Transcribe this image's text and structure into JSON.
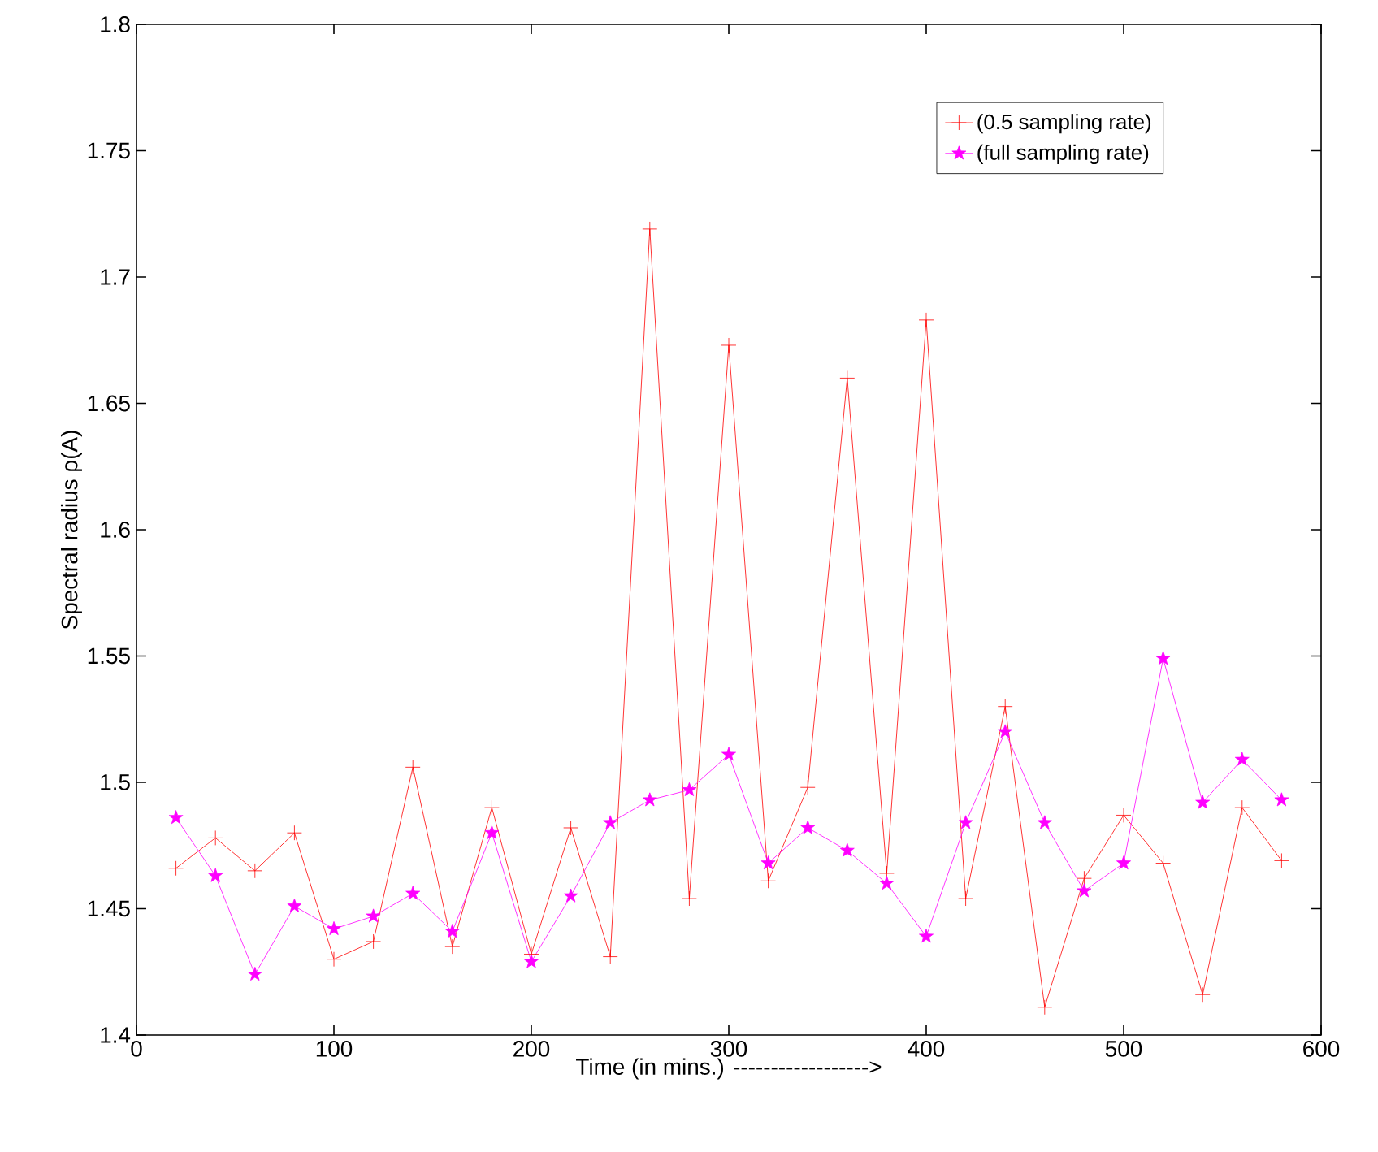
{
  "chart_data": {
    "type": "line",
    "xlabel": "Time (in mins.) ------------------>",
    "ylabel": "Spectral radius ρ(A)",
    "x": [
      20,
      40,
      60,
      80,
      100,
      120,
      140,
      160,
      180,
      200,
      220,
      240,
      260,
      280,
      300,
      320,
      340,
      360,
      380,
      400,
      420,
      440,
      460,
      480,
      500,
      520,
      540,
      560,
      580
    ],
    "series": [
      {
        "name": "(0.5 sampling rate)",
        "color": "#ff0000",
        "marker": "cross",
        "values": [
          1.466,
          1.478,
          1.465,
          1.48,
          1.43,
          1.437,
          1.506,
          1.435,
          1.49,
          1.432,
          1.482,
          1.431,
          1.719,
          1.454,
          1.673,
          1.461,
          1.498,
          1.66,
          1.464,
          1.683,
          1.454,
          1.53,
          1.411,
          1.462,
          1.487,
          1.468,
          1.416,
          1.49,
          1.469
        ]
      },
      {
        "name": "(full sampling rate)",
        "color": "#ff00ff",
        "marker": "star",
        "values": [
          1.486,
          1.463,
          1.424,
          1.451,
          1.442,
          1.447,
          1.456,
          1.441,
          1.48,
          1.429,
          1.455,
          1.484,
          1.493,
          1.497,
          1.511,
          1.468,
          1.482,
          1.473,
          1.46,
          1.439,
          1.484,
          1.52,
          1.484,
          1.457,
          1.468,
          1.549,
          1.492,
          1.509,
          1.493
        ]
      }
    ],
    "xlim": [
      0,
      600
    ],
    "xticks": [
      0,
      100,
      200,
      300,
      400,
      500,
      600
    ],
    "ylim": [
      1.4,
      1.8
    ],
    "yticks": [
      1.4,
      1.45,
      1.5,
      1.55,
      1.6,
      1.65,
      1.7,
      1.75,
      1.8
    ],
    "legend": "top right",
    "grid": false,
    "line_style": "solid"
  }
}
